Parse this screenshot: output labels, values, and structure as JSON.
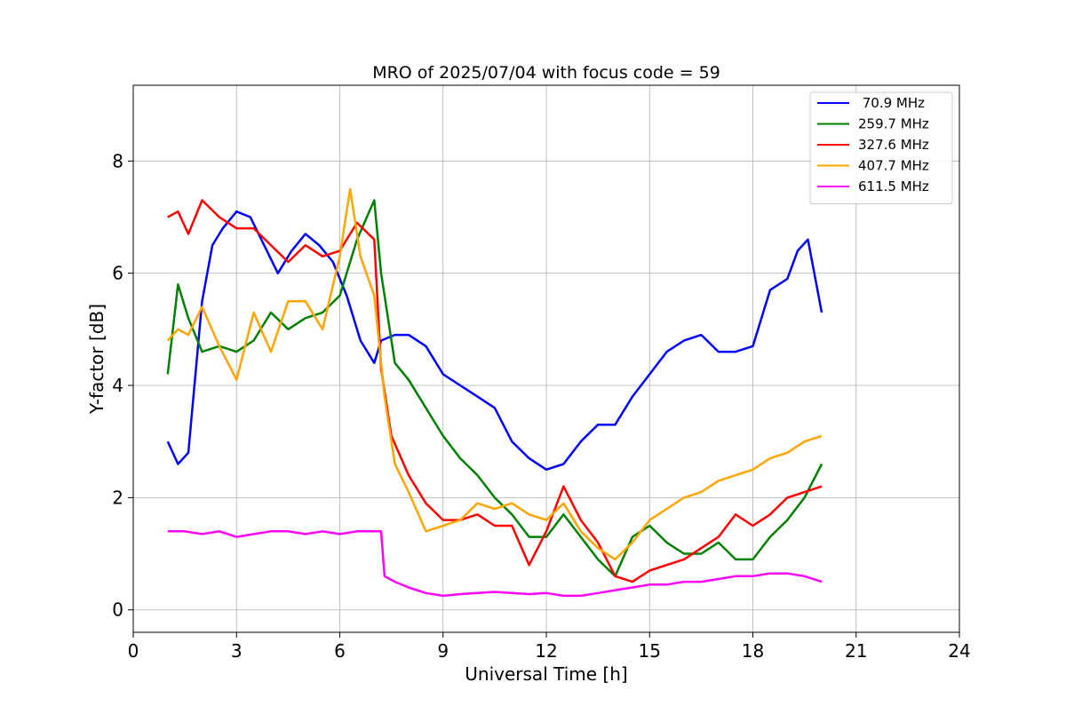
{
  "chart_data": {
    "type": "line",
    "title": "MRO of 2025/07/04 with focus code = 59",
    "xlabel": "Universal Time [h]",
    "ylabel": "Y-factor [dB]",
    "xlim": [
      0,
      24
    ],
    "ylim": [
      -0.4,
      9.35
    ],
    "xticks": [
      0,
      3,
      6,
      9,
      12,
      15,
      18,
      21,
      24
    ],
    "yticks": [
      0,
      2,
      4,
      6,
      8
    ],
    "grid": true,
    "legend_position": "top-right",
    "series": [
      {
        "name": " 70.9 MHz",
        "color": "#0000ff",
        "x": [
          1.0,
          1.3,
          1.6,
          2.0,
          2.3,
          2.6,
          3.0,
          3.4,
          3.8,
          4.2,
          4.6,
          5.0,
          5.4,
          5.8,
          6.2,
          6.6,
          7.0,
          7.2,
          7.6,
          8.0,
          8.5,
          9.0,
          9.5,
          10.0,
          10.5,
          11.0,
          11.5,
          12.0,
          12.5,
          13.0,
          13.5,
          14.0,
          14.5,
          15.0,
          15.5,
          16.0,
          16.5,
          17.0,
          17.5,
          18.0,
          18.5,
          19.0,
          19.3,
          19.6,
          20.0
        ],
        "y": [
          3.0,
          2.6,
          2.8,
          5.5,
          6.5,
          6.8,
          7.1,
          7.0,
          6.5,
          6.0,
          6.4,
          6.7,
          6.5,
          6.2,
          5.6,
          4.8,
          4.4,
          4.8,
          4.9,
          4.9,
          4.7,
          4.2,
          4.0,
          3.8,
          3.6,
          3.0,
          2.7,
          2.5,
          2.6,
          3.0,
          3.3,
          3.3,
          3.8,
          4.2,
          4.6,
          4.8,
          4.9,
          4.6,
          4.6,
          4.7,
          5.7,
          5.9,
          6.4,
          6.6,
          5.3
        ]
      },
      {
        "name": "259.7 MHz",
        "color": "#008000",
        "x": [
          1.0,
          1.3,
          1.6,
          2.0,
          2.5,
          3.0,
          3.5,
          4.0,
          4.5,
          5.0,
          5.5,
          6.0,
          6.5,
          7.0,
          7.2,
          7.6,
          8.0,
          8.5,
          9.0,
          9.5,
          10.0,
          10.5,
          11.0,
          11.5,
          12.0,
          12.5,
          13.0,
          13.5,
          14.0,
          14.5,
          15.0,
          15.5,
          16.0,
          16.5,
          17.0,
          17.5,
          18.0,
          18.5,
          19.0,
          19.5,
          20.0
        ],
        "y": [
          4.2,
          5.8,
          5.2,
          4.6,
          4.7,
          4.6,
          4.8,
          5.3,
          5.0,
          5.2,
          5.3,
          5.6,
          6.6,
          7.3,
          6.0,
          4.4,
          4.1,
          3.6,
          3.1,
          2.7,
          2.4,
          2.0,
          1.7,
          1.3,
          1.3,
          1.7,
          1.3,
          0.9,
          0.6,
          1.3,
          1.5,
          1.2,
          1.0,
          1.0,
          1.2,
          0.9,
          0.9,
          1.3,
          1.6,
          2.0,
          2.6
        ]
      },
      {
        "name": "327.6 MHz",
        "color": "#ff0000",
        "x": [
          1.0,
          1.3,
          1.6,
          2.0,
          2.5,
          3.0,
          3.5,
          4.0,
          4.5,
          5.0,
          5.5,
          6.0,
          6.5,
          7.0,
          7.2,
          7.5,
          8.0,
          8.5,
          9.0,
          9.5,
          10.0,
          10.5,
          11.0,
          11.5,
          12.0,
          12.5,
          13.0,
          13.5,
          14.0,
          14.5,
          15.0,
          15.5,
          16.0,
          16.5,
          17.0,
          17.5,
          18.0,
          18.5,
          19.0,
          19.5,
          20.0
        ],
        "y": [
          7.0,
          7.1,
          6.7,
          7.3,
          7.0,
          6.8,
          6.8,
          6.5,
          6.2,
          6.5,
          6.3,
          6.4,
          6.9,
          6.6,
          4.3,
          3.1,
          2.4,
          1.9,
          1.6,
          1.6,
          1.7,
          1.5,
          1.5,
          0.8,
          1.4,
          2.2,
          1.6,
          1.2,
          0.6,
          0.5,
          0.7,
          0.8,
          0.9,
          1.1,
          1.3,
          1.7,
          1.5,
          1.7,
          2.0,
          2.1,
          2.2
        ]
      },
      {
        "name": "407.7 MHz",
        "color": "#ffa500",
        "x": [
          1.0,
          1.3,
          1.6,
          2.0,
          2.5,
          3.0,
          3.5,
          4.0,
          4.5,
          5.0,
          5.5,
          6.0,
          6.3,
          6.6,
          7.0,
          7.3,
          7.6,
          8.0,
          8.5,
          9.0,
          9.5,
          10.0,
          10.5,
          11.0,
          11.5,
          12.0,
          12.5,
          13.0,
          13.5,
          14.0,
          14.5,
          15.0,
          15.5,
          16.0,
          16.5,
          17.0,
          17.5,
          18.0,
          18.5,
          19.0,
          19.5,
          20.0
        ],
        "y": [
          4.8,
          5.0,
          4.9,
          5.4,
          4.7,
          4.1,
          5.3,
          4.6,
          5.5,
          5.5,
          5.0,
          6.3,
          7.5,
          6.3,
          5.6,
          3.8,
          2.6,
          2.1,
          1.4,
          1.5,
          1.6,
          1.9,
          1.8,
          1.9,
          1.7,
          1.6,
          1.9,
          1.4,
          1.1,
          0.9,
          1.2,
          1.6,
          1.8,
          2.0,
          2.1,
          2.3,
          2.4,
          2.5,
          2.7,
          2.8,
          3.0,
          3.1
        ]
      },
      {
        "name": "611.5 MHz",
        "color": "#ff00ff",
        "x": [
          1.0,
          1.5,
          2.0,
          2.5,
          3.0,
          3.5,
          4.0,
          4.5,
          5.0,
          5.5,
          6.0,
          6.5,
          7.0,
          7.2,
          7.3,
          7.6,
          8.0,
          8.5,
          9.0,
          9.5,
          10.0,
          10.5,
          11.0,
          11.5,
          12.0,
          12.5,
          13.0,
          13.5,
          14.0,
          14.5,
          15.0,
          15.5,
          16.0,
          16.5,
          17.0,
          17.5,
          18.0,
          18.5,
          19.0,
          19.5,
          20.0
        ],
        "y": [
          1.4,
          1.4,
          1.35,
          1.4,
          1.3,
          1.35,
          1.4,
          1.4,
          1.35,
          1.4,
          1.35,
          1.4,
          1.4,
          1.4,
          0.6,
          0.5,
          0.4,
          0.3,
          0.25,
          0.28,
          0.3,
          0.32,
          0.3,
          0.28,
          0.3,
          0.25,
          0.25,
          0.3,
          0.35,
          0.4,
          0.45,
          0.45,
          0.5,
          0.5,
          0.55,
          0.6,
          0.6,
          0.65,
          0.65,
          0.6,
          0.5
        ]
      }
    ]
  }
}
